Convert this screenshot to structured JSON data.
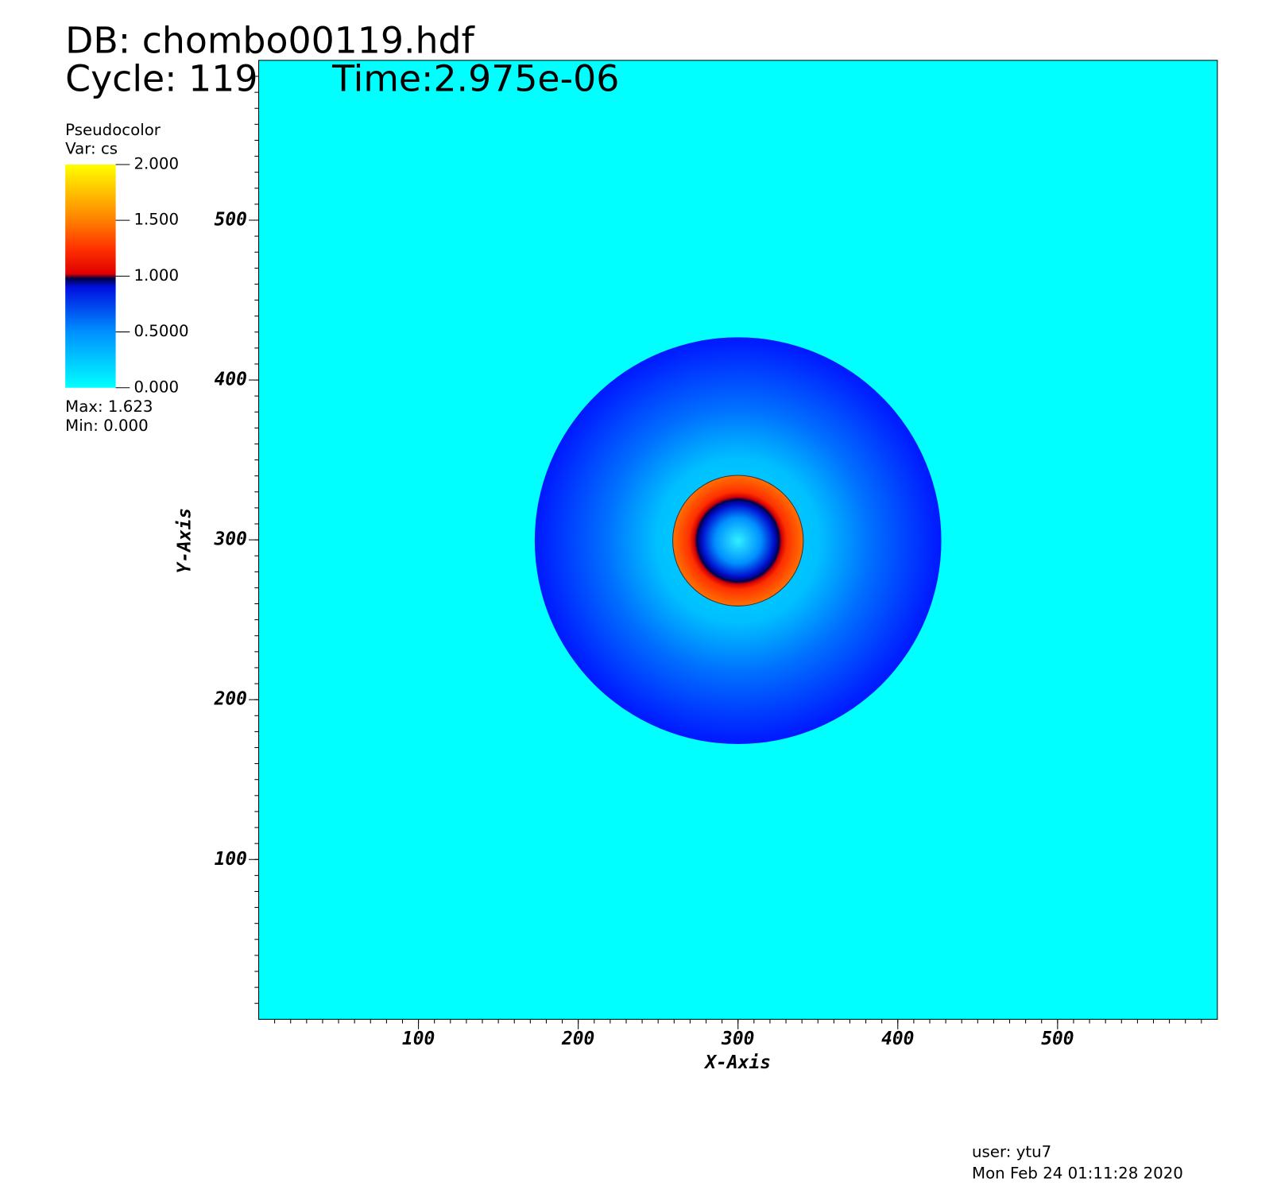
{
  "header": {
    "db": "DB: chombo00119.hdf",
    "cycle": "Cycle: 119",
    "time": "Time:2.975e-06"
  },
  "legend": {
    "title": "Pseudocolor",
    "var": "Var: cs",
    "ticks": [
      {
        "value": 2,
        "label": "2.000"
      },
      {
        "value": 1.5,
        "label": "1.500"
      },
      {
        "value": 1,
        "label": "1.000"
      },
      {
        "value": 0.5,
        "label": "0.5000"
      },
      {
        "value": 0,
        "label": "0.000"
      }
    ],
    "max": "Max:  1.623",
    "min": "Min:  0.000"
  },
  "chart_data": {
    "type": "pseudocolor",
    "xlabel": "X-Axis",
    "ylabel": "Y-Axis",
    "xlim": [
      0,
      600
    ],
    "ylim": [
      0,
      600
    ],
    "xticks": [
      100,
      200,
      300,
      400,
      500
    ],
    "yticks": [
      100,
      200,
      300,
      400,
      500
    ]
  },
  "footer": {
    "user": "user: ytu7",
    "date": "Mon Feb 24 01:11:28 2020"
  }
}
